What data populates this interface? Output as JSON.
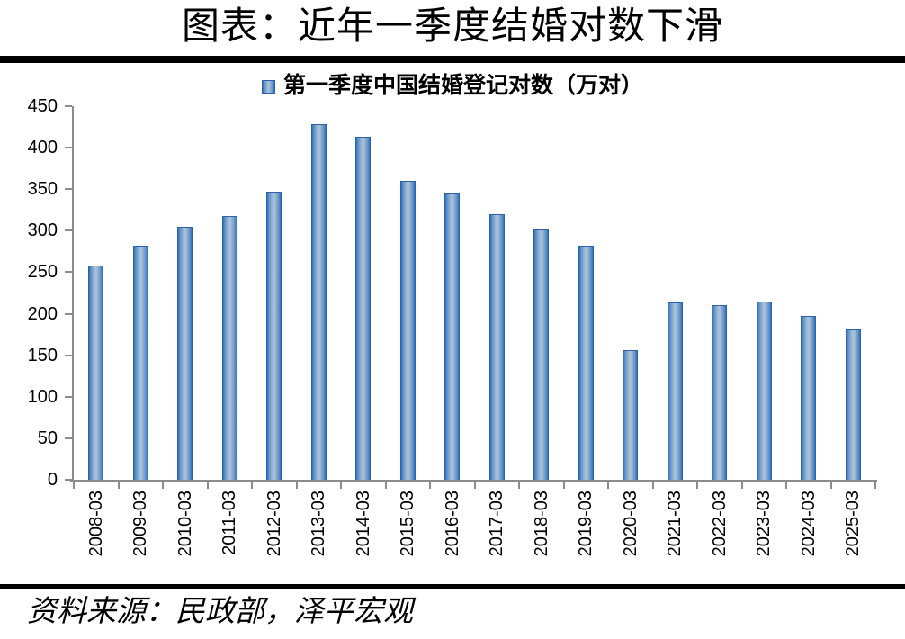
{
  "header": {
    "title": "图表：近年一季度结婚对数下滑"
  },
  "legend": {
    "marker_icon": "blue-gradient-square",
    "label": "第一季度中国结婚登记对数（万对）"
  },
  "chart_data": {
    "type": "bar",
    "title": "第一季度中国结婚登记对数（万对）",
    "categories": [
      "2008-03",
      "2009-03",
      "2010-03",
      "2011-03",
      "2012-03",
      "2013-03",
      "2014-03",
      "2015-03",
      "2016-03",
      "2017-03",
      "2018-03",
      "2019-03",
      "2020-03",
      "2021-03",
      "2022-03",
      "2023-03",
      "2024-03",
      "2025-03"
    ],
    "values": [
      257.7,
      282.4,
      305.2,
      317.3,
      346.8,
      428.2,
      412.8,
      360.0,
      344.8,
      319.8,
      301.7,
      281.5,
      155.7,
      213.2,
      210.7,
      214.7,
      196.9,
      181.0
    ],
    "xlabel": "",
    "ylabel": "",
    "ylim": [
      0,
      450
    ],
    "ytick_interval": 50,
    "grid": false,
    "legend_position": "top-center",
    "bar_edge_color": "#3273B8",
    "bar_mid_color": "#6C98CC",
    "bar_center_color": "#A9BFD6",
    "bar_border_color": "#2B62A8",
    "axis_color": "#8C8C8C",
    "text_color": "#000000"
  },
  "footer": {
    "source": "资料来源：民政部，泽平宏观"
  }
}
